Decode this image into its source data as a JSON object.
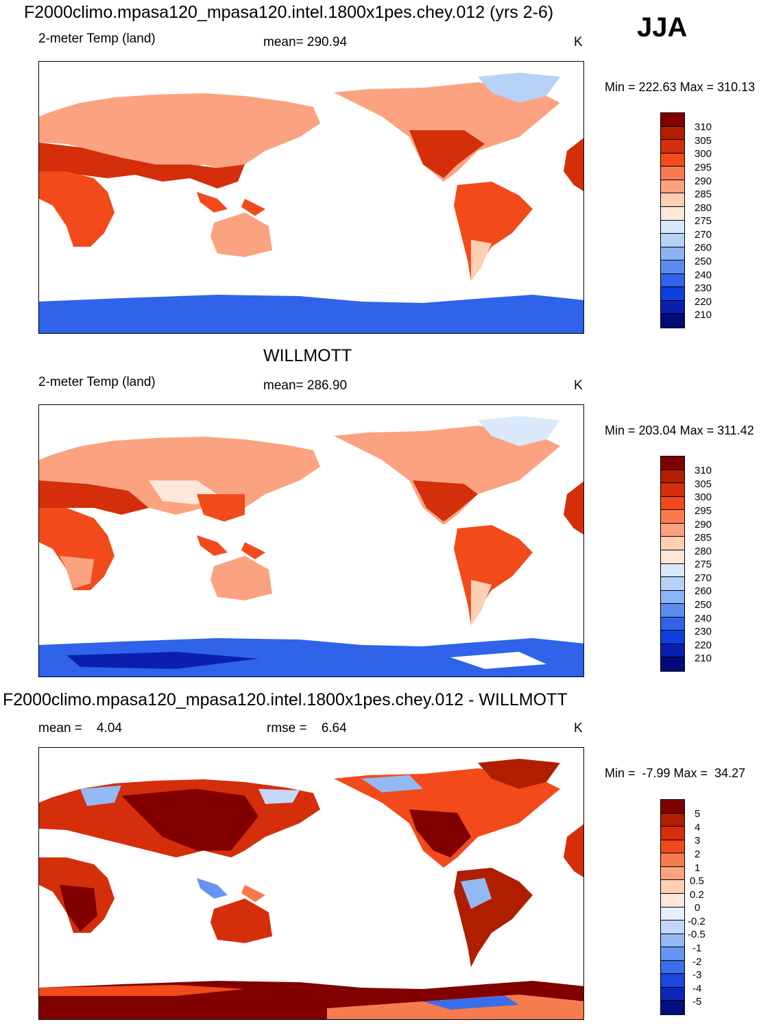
{
  "season": "JJA",
  "panels": [
    {
      "id": "model",
      "title": "F2000climo.mpasa120_mpasa120.intel.1800x1pes.chey.012 (yrs 2-6)",
      "variable": "2-meter Temp (land)",
      "stat_left": "",
      "stat_mid": "mean= 290.94",
      "units": "K",
      "minmax": "Min = 222.63 Max = 310.13",
      "levels": [
        "310",
        "305",
        "300",
        "295",
        "290",
        "285",
        "280",
        "275",
        "270",
        "260",
        "250",
        "240",
        "230",
        "220",
        "210"
      ],
      "colors": [
        "#800000",
        "#b01e00",
        "#d42e0a",
        "#f24a1a",
        "#f87b4f",
        "#fba380",
        "#fdd0b4",
        "#fde7da",
        "#d9e9fb",
        "#b7d2f7",
        "#8ab4f3",
        "#5a8cf0",
        "#2f63e9",
        "#0f3fdc",
        "#0a1fb0",
        "#000a78"
      ]
    },
    {
      "id": "obs",
      "title": "WILLMOTT",
      "variable": "2-meter Temp (land)",
      "stat_left": "",
      "stat_mid": "mean= 286.90",
      "units": "K",
      "minmax": "Min = 203.04 Max = 311.42",
      "levels": [
        "310",
        "305",
        "300",
        "295",
        "290",
        "285",
        "280",
        "275",
        "270",
        "260",
        "250",
        "240",
        "230",
        "220",
        "210"
      ],
      "colors": [
        "#800000",
        "#b01e00",
        "#d42e0a",
        "#f24a1a",
        "#f87b4f",
        "#fba380",
        "#fdd0b4",
        "#fde7da",
        "#d9e9fb",
        "#b7d2f7",
        "#8ab4f3",
        "#5a8cf0",
        "#2f63e9",
        "#0f3fdc",
        "#0a1fb0",
        "#000a78"
      ]
    },
    {
      "id": "diff",
      "title": "F2000climo.mpasa120_mpasa120.intel.1800x1pes.chey.012 - WILLMOTT",
      "variable": "",
      "stat_left": "mean =    4.04",
      "stat_mid": "rmse =    6.64",
      "units": "K",
      "minmax": "Min =  -7.99 Max =  34.27",
      "levels": [
        "5",
        "4",
        "3",
        "2",
        "1",
        "0.5",
        "0.2",
        "0",
        "-0.2",
        "-0.5",
        "-1",
        "-2",
        "-3",
        "-4",
        "-5"
      ],
      "colors": [
        "#800000",
        "#b01e00",
        "#d42e0a",
        "#f24a1a",
        "#f87b4f",
        "#fba380",
        "#fdd0b4",
        "#fde7da",
        "#e6effc",
        "#c3d8f8",
        "#93b9f4",
        "#6694f0",
        "#3a6de9",
        "#1a47dd",
        "#0c27b8",
        "#00107e"
      ]
    }
  ]
}
